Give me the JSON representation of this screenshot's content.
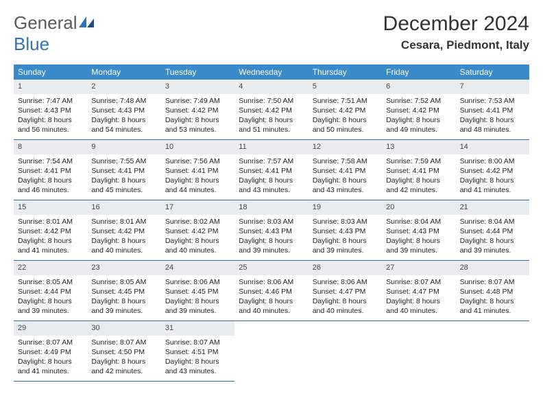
{
  "logo": {
    "word1": "General",
    "word2": "Blue"
  },
  "title": "December 2024",
  "location": "Cesara, Piedmont, Italy",
  "colors": {
    "header_bg": "#3a8ac9",
    "header_text": "#ffffff",
    "daynum_bg": "#e9ecef",
    "cell_border": "#2e6da4",
    "logo_gray": "#5a5a5a",
    "logo_blue": "#2e75b6"
  },
  "weekdays": [
    "Sunday",
    "Monday",
    "Tuesday",
    "Wednesday",
    "Thursday",
    "Friday",
    "Saturday"
  ],
  "days": [
    {
      "n": "1",
      "sunrise": "Sunrise: 7:47 AM",
      "sunset": "Sunset: 4:43 PM",
      "daylight": "Daylight: 8 hours and 56 minutes."
    },
    {
      "n": "2",
      "sunrise": "Sunrise: 7:48 AM",
      "sunset": "Sunset: 4:43 PM",
      "daylight": "Daylight: 8 hours and 54 minutes."
    },
    {
      "n": "3",
      "sunrise": "Sunrise: 7:49 AM",
      "sunset": "Sunset: 4:42 PM",
      "daylight": "Daylight: 8 hours and 53 minutes."
    },
    {
      "n": "4",
      "sunrise": "Sunrise: 7:50 AM",
      "sunset": "Sunset: 4:42 PM",
      "daylight": "Daylight: 8 hours and 51 minutes."
    },
    {
      "n": "5",
      "sunrise": "Sunrise: 7:51 AM",
      "sunset": "Sunset: 4:42 PM",
      "daylight": "Daylight: 8 hours and 50 minutes."
    },
    {
      "n": "6",
      "sunrise": "Sunrise: 7:52 AM",
      "sunset": "Sunset: 4:42 PM",
      "daylight": "Daylight: 8 hours and 49 minutes."
    },
    {
      "n": "7",
      "sunrise": "Sunrise: 7:53 AM",
      "sunset": "Sunset: 4:41 PM",
      "daylight": "Daylight: 8 hours and 48 minutes."
    },
    {
      "n": "8",
      "sunrise": "Sunrise: 7:54 AM",
      "sunset": "Sunset: 4:41 PM",
      "daylight": "Daylight: 8 hours and 46 minutes."
    },
    {
      "n": "9",
      "sunrise": "Sunrise: 7:55 AM",
      "sunset": "Sunset: 4:41 PM",
      "daylight": "Daylight: 8 hours and 45 minutes."
    },
    {
      "n": "10",
      "sunrise": "Sunrise: 7:56 AM",
      "sunset": "Sunset: 4:41 PM",
      "daylight": "Daylight: 8 hours and 44 minutes."
    },
    {
      "n": "11",
      "sunrise": "Sunrise: 7:57 AM",
      "sunset": "Sunset: 4:41 PM",
      "daylight": "Daylight: 8 hours and 43 minutes."
    },
    {
      "n": "12",
      "sunrise": "Sunrise: 7:58 AM",
      "sunset": "Sunset: 4:41 PM",
      "daylight": "Daylight: 8 hours and 43 minutes."
    },
    {
      "n": "13",
      "sunrise": "Sunrise: 7:59 AM",
      "sunset": "Sunset: 4:41 PM",
      "daylight": "Daylight: 8 hours and 42 minutes."
    },
    {
      "n": "14",
      "sunrise": "Sunrise: 8:00 AM",
      "sunset": "Sunset: 4:42 PM",
      "daylight": "Daylight: 8 hours and 41 minutes."
    },
    {
      "n": "15",
      "sunrise": "Sunrise: 8:01 AM",
      "sunset": "Sunset: 4:42 PM",
      "daylight": "Daylight: 8 hours and 41 minutes."
    },
    {
      "n": "16",
      "sunrise": "Sunrise: 8:01 AM",
      "sunset": "Sunset: 4:42 PM",
      "daylight": "Daylight: 8 hours and 40 minutes."
    },
    {
      "n": "17",
      "sunrise": "Sunrise: 8:02 AM",
      "sunset": "Sunset: 4:42 PM",
      "daylight": "Daylight: 8 hours and 40 minutes."
    },
    {
      "n": "18",
      "sunrise": "Sunrise: 8:03 AM",
      "sunset": "Sunset: 4:43 PM",
      "daylight": "Daylight: 8 hours and 39 minutes."
    },
    {
      "n": "19",
      "sunrise": "Sunrise: 8:03 AM",
      "sunset": "Sunset: 4:43 PM",
      "daylight": "Daylight: 8 hours and 39 minutes."
    },
    {
      "n": "20",
      "sunrise": "Sunrise: 8:04 AM",
      "sunset": "Sunset: 4:43 PM",
      "daylight": "Daylight: 8 hours and 39 minutes."
    },
    {
      "n": "21",
      "sunrise": "Sunrise: 8:04 AM",
      "sunset": "Sunset: 4:44 PM",
      "daylight": "Daylight: 8 hours and 39 minutes."
    },
    {
      "n": "22",
      "sunrise": "Sunrise: 8:05 AM",
      "sunset": "Sunset: 4:44 PM",
      "daylight": "Daylight: 8 hours and 39 minutes."
    },
    {
      "n": "23",
      "sunrise": "Sunrise: 8:05 AM",
      "sunset": "Sunset: 4:45 PM",
      "daylight": "Daylight: 8 hours and 39 minutes."
    },
    {
      "n": "24",
      "sunrise": "Sunrise: 8:06 AM",
      "sunset": "Sunset: 4:45 PM",
      "daylight": "Daylight: 8 hours and 39 minutes."
    },
    {
      "n": "25",
      "sunrise": "Sunrise: 8:06 AM",
      "sunset": "Sunset: 4:46 PM",
      "daylight": "Daylight: 8 hours and 40 minutes."
    },
    {
      "n": "26",
      "sunrise": "Sunrise: 8:06 AM",
      "sunset": "Sunset: 4:47 PM",
      "daylight": "Daylight: 8 hours and 40 minutes."
    },
    {
      "n": "27",
      "sunrise": "Sunrise: 8:07 AM",
      "sunset": "Sunset: 4:47 PM",
      "daylight": "Daylight: 8 hours and 40 minutes."
    },
    {
      "n": "28",
      "sunrise": "Sunrise: 8:07 AM",
      "sunset": "Sunset: 4:48 PM",
      "daylight": "Daylight: 8 hours and 41 minutes."
    },
    {
      "n": "29",
      "sunrise": "Sunrise: 8:07 AM",
      "sunset": "Sunset: 4:49 PM",
      "daylight": "Daylight: 8 hours and 41 minutes."
    },
    {
      "n": "30",
      "sunrise": "Sunrise: 8:07 AM",
      "sunset": "Sunset: 4:50 PM",
      "daylight": "Daylight: 8 hours and 42 minutes."
    },
    {
      "n": "31",
      "sunrise": "Sunrise: 8:07 AM",
      "sunset": "Sunset: 4:51 PM",
      "daylight": "Daylight: 8 hours and 43 minutes."
    }
  ]
}
